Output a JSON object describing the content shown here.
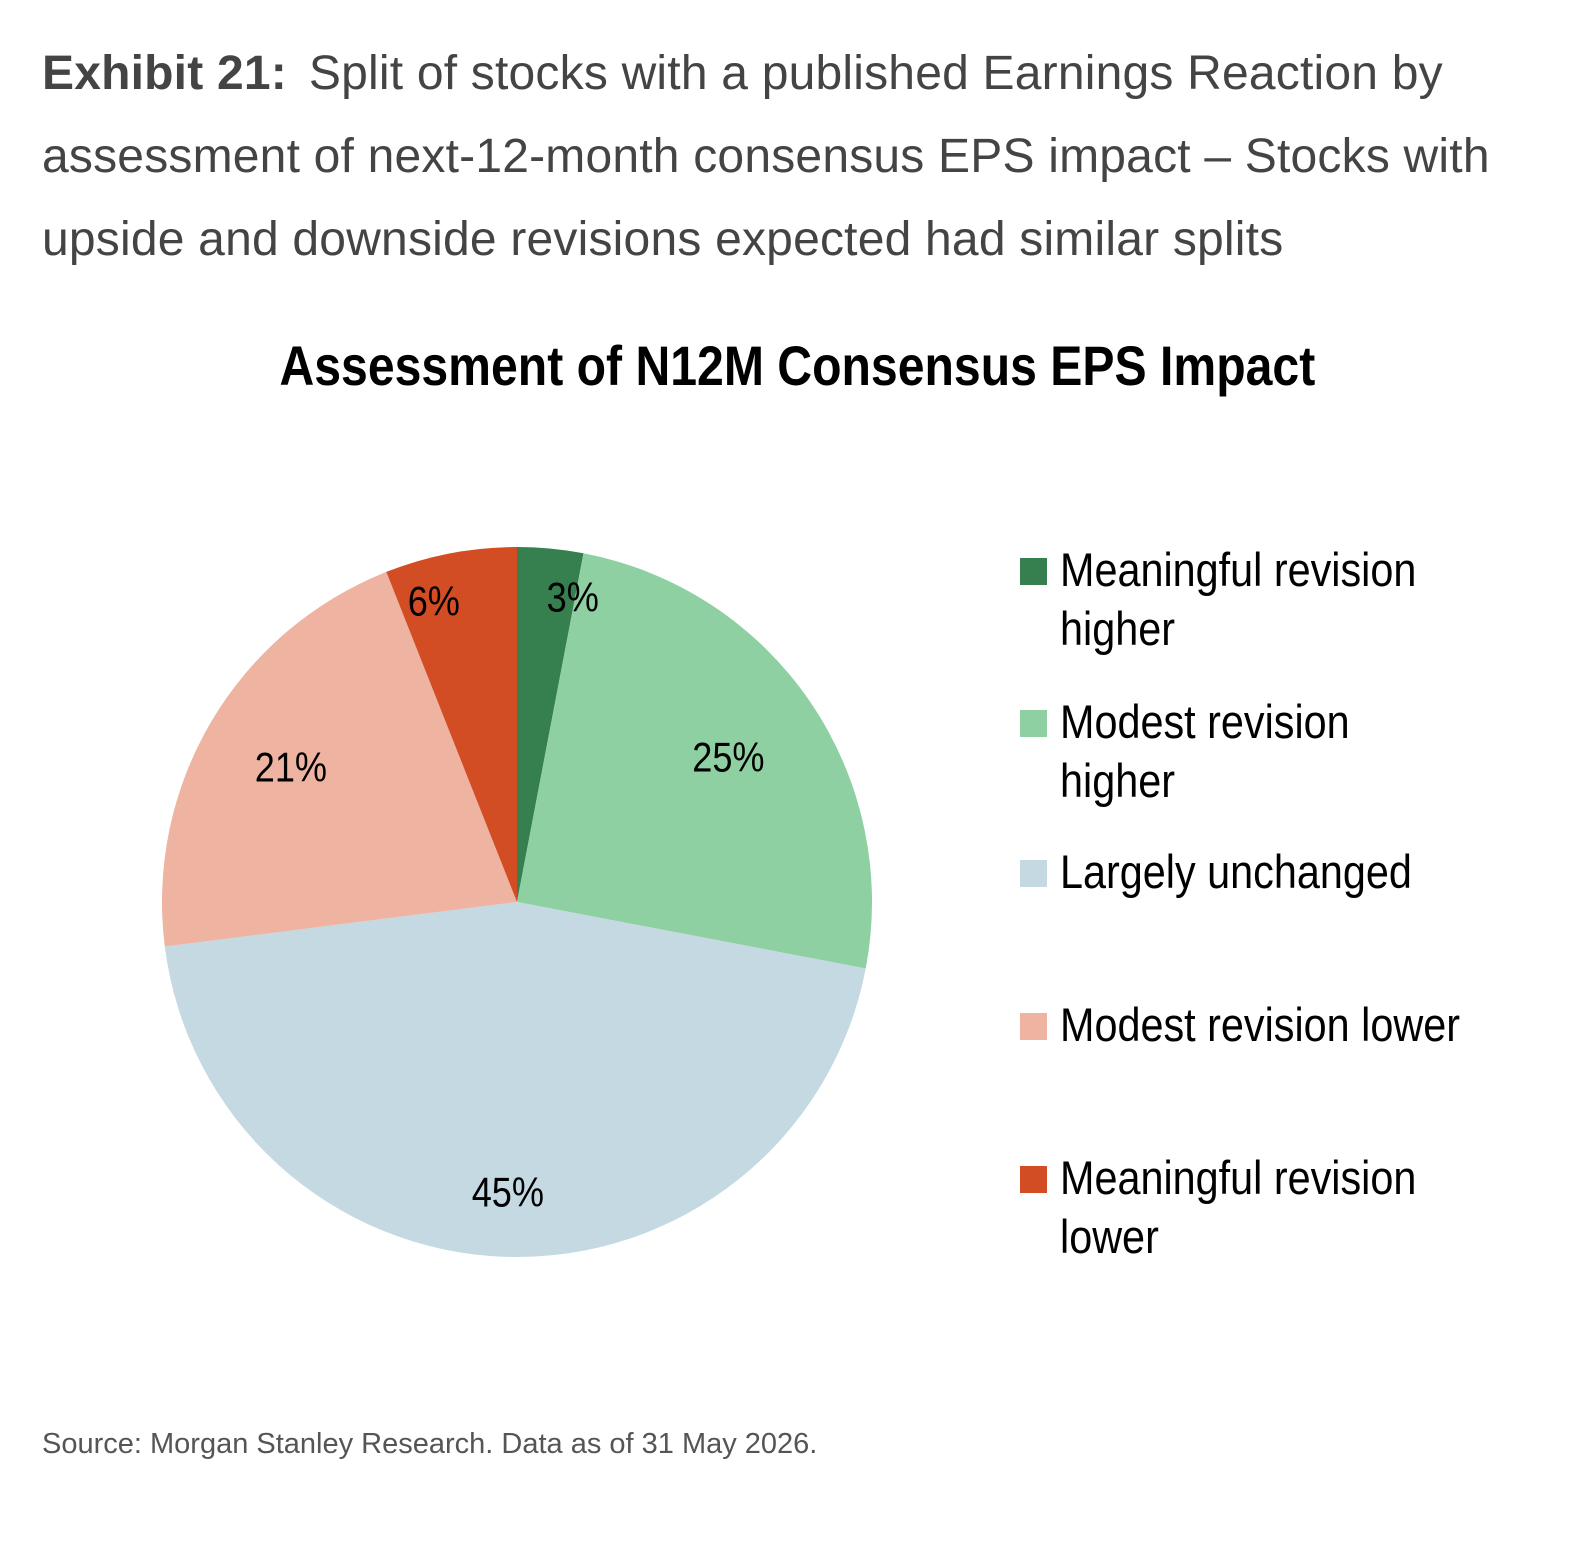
{
  "exhibit": {
    "label": "Exhibit 21:",
    "description": "Split of stocks with a published Earnings Reaction by assessment of next-12-month consensus EPS impact – Stocks with upside and downside revisions expected had similar splits"
  },
  "chart_data": {
    "type": "pie",
    "title": "Assessment of N12M Consensus EPS Impact",
    "legend_position": "right",
    "slices": [
      {
        "name": "Meaningful revision higher",
        "value": 3,
        "label": "3%",
        "color": "#367f4f"
      },
      {
        "name": "Modest revision higher",
        "value": 25,
        "label": "25%",
        "color": "#8fd0a3"
      },
      {
        "name": "Largely unchanged",
        "value": 45,
        "label": "45%",
        "color": "#c4d9e2"
      },
      {
        "name": "Modest revision lower",
        "value": 21,
        "label": "21%",
        "color": "#eeb3a1"
      },
      {
        "name": "Meaningful revision lower",
        "value": 6,
        "label": "6%",
        "color": "#d24c24"
      }
    ]
  },
  "footer": {
    "source": "Source: Morgan Stanley Research. Data as of 31 May 2026."
  }
}
